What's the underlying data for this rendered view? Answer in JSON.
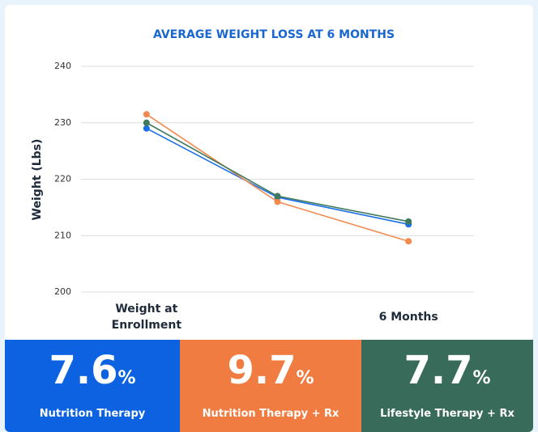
{
  "chart_data": {
    "type": "line",
    "title": "AVERAGE WEIGHT LOSS AT 6 MONTHS",
    "ylabel": "Weight (Lbs)",
    "categories": [
      "Weight at Enrollment",
      null,
      "6 Months"
    ],
    "series": [
      {
        "name": "Nutrition Therapy",
        "color": "#1a6ee6",
        "values": [
          229,
          216.8,
          212
        ]
      },
      {
        "name": "Nutrition Therapy + Rx",
        "color": "#f28a50",
        "values": [
          231.5,
          216,
          209
        ]
      },
      {
        "name": "Lifestyle Therapy + Rx",
        "color": "#3f7a5c",
        "values": [
          230,
          217,
          212.5
        ]
      }
    ],
    "ylim": [
      200,
      240
    ],
    "yticks": [
      200,
      210,
      220,
      230,
      240
    ],
    "grid": true
  },
  "cards": {
    "values": [
      7.6,
      9.7,
      7.7
    ],
    "unit": "%",
    "colors": [
      "#0c62e0",
      "#f07c42",
      "#386b5a"
    ]
  }
}
